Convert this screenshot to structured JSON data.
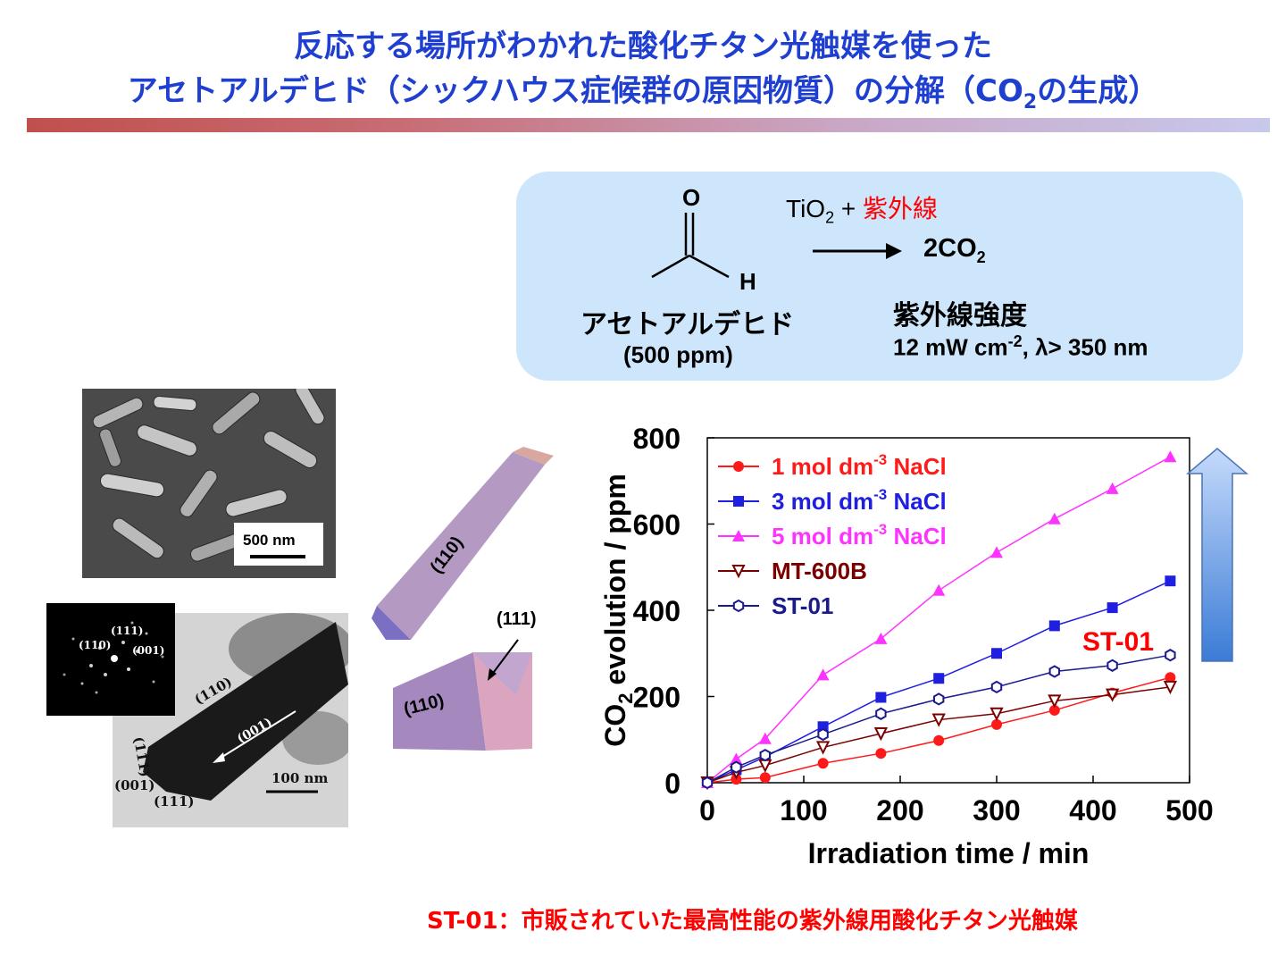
{
  "slide": {
    "title_line1": "反応する場所がわかれた酸化チタン光触媒を使った",
    "title_line2_a": "アセトアルデヒド（シックハウス症候群の原因物質）の分解（CO",
    "title_line2_sub": "2",
    "title_line2_b": "の生成）",
    "accent_color": "#1f3fd0"
  },
  "reaction": {
    "o_label": "O",
    "h_label": "H",
    "catalyst_a": "TiO",
    "catalyst_sub": "2",
    "catalyst_plus": " + ",
    "uv_label": "紫外線",
    "product_a": "2CO",
    "product_sub": "2",
    "reactant_name": "アセトアルデヒド",
    "reactant_conc": "(500 ppm)",
    "intensity_title": "紫外線強度",
    "intensity_a": "12 mW cm",
    "intensity_sup": "-2",
    "intensity_b": ", λ> 350 nm"
  },
  "micrographs": {
    "sem_scale": "500 nm",
    "tem_scale": "100 nm",
    "saed_labels": [
      "(111)",
      "(110)",
      "(001)"
    ],
    "tem_labels": [
      "(110)",
      "(001)",
      "(111)",
      "(001)",
      "(111)"
    ]
  },
  "crystal": {
    "face_110_long": "(110)",
    "face_110_short": "(110)",
    "face_111": "(111)"
  },
  "chart_data": {
    "type": "line",
    "xlabel": "Irradiation time / min",
    "ylabel_a": "CO",
    "ylabel_sub": "2",
    "ylabel_b": " evolution / ppm",
    "xlim": [
      0,
      500
    ],
    "ylim": [
      0,
      800
    ],
    "xticks": [
      0,
      100,
      200,
      300,
      400,
      500
    ],
    "yticks": [
      0,
      200,
      400,
      600,
      800
    ],
    "legend_position": "top-left",
    "series": [
      {
        "name": "1 mol dm",
        "name_sup": "-3",
        "name_b": " NaCl",
        "color": "#ff1a1a",
        "marker": "circle",
        "x": [
          0,
          30,
          60,
          120,
          180,
          240,
          300,
          360,
          420,
          480
        ],
        "y": [
          0,
          8,
          12,
          45,
          68,
          98,
          135,
          168,
          208,
          244
        ]
      },
      {
        "name": "3 mol dm",
        "name_sup": "-3",
        "name_b": " NaCl",
        "color": "#1f1fe0",
        "marker": "square",
        "x": [
          0,
          30,
          60,
          120,
          180,
          240,
          300,
          360,
          420,
          480
        ],
        "y": [
          0,
          30,
          60,
          130,
          198,
          242,
          300,
          364,
          406,
          468
        ]
      },
      {
        "name": "5 mol dm",
        "name_sup": "-3",
        "name_b": " NaCl",
        "color": "#ff33ff",
        "marker": "triangle",
        "x": [
          0,
          30,
          60,
          120,
          180,
          240,
          300,
          360,
          420,
          480
        ],
        "y": [
          0,
          55,
          102,
          250,
          334,
          446,
          534,
          612,
          682,
          756
        ]
      },
      {
        "name": "MT-600B",
        "color": "#7a0000",
        "marker": "triangle-down",
        "x": [
          0,
          30,
          60,
          120,
          180,
          240,
          300,
          360,
          420,
          480
        ],
        "y": [
          0,
          24,
          40,
          82,
          114,
          146,
          160,
          190,
          204,
          222
        ]
      },
      {
        "name": "ST-01",
        "color": "#1a1a8c",
        "marker": "hexagon",
        "x": [
          0,
          30,
          60,
          120,
          180,
          240,
          300,
          360,
          420,
          480
        ],
        "y": [
          0,
          36,
          64,
          112,
          160,
          194,
          222,
          258,
          272,
          296
        ]
      }
    ],
    "annotation": "ST-01"
  },
  "footnote": "ST-01：市販されていた最高性能の紫外線用酸化チタン光触媒"
}
